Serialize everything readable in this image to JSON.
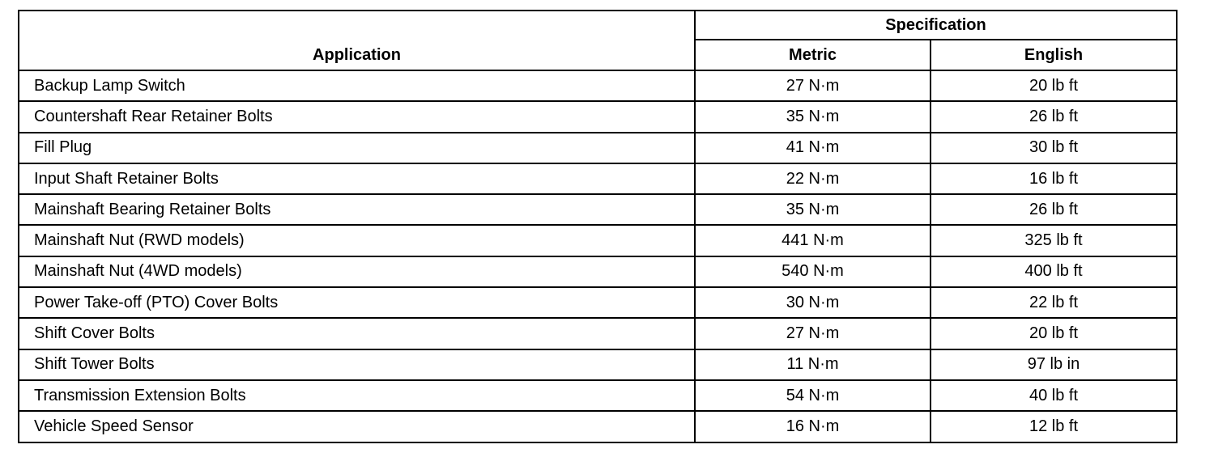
{
  "headers": {
    "application": "Application",
    "specification": "Specification",
    "metric": "Metric",
    "english": "English"
  },
  "rows": [
    {
      "application": "Backup Lamp Switch",
      "metric": "27 N·m",
      "english": "20 lb ft"
    },
    {
      "application": "Countershaft Rear Retainer Bolts",
      "metric": "35 N·m",
      "english": "26 lb ft"
    },
    {
      "application": "Fill Plug",
      "metric": "41 N·m",
      "english": "30 lb ft"
    },
    {
      "application": "Input Shaft Retainer Bolts",
      "metric": "22 N·m",
      "english": "16 lb ft"
    },
    {
      "application": "Mainshaft Bearing Retainer Bolts",
      "metric": "35 N·m",
      "english": "26 lb ft"
    },
    {
      "application": "Mainshaft Nut (RWD models)",
      "metric": "441 N·m",
      "english": "325 lb ft"
    },
    {
      "application": "Mainshaft Nut (4WD models)",
      "metric": "540 N·m",
      "english": "400 lb ft"
    },
    {
      "application": "Power Take-off (PTO) Cover Bolts",
      "metric": "30 N·m",
      "english": "22 lb ft"
    },
    {
      "application": "Shift Cover Bolts",
      "metric": "27 N·m",
      "english": "20 lb ft"
    },
    {
      "application": "Shift Tower Bolts",
      "metric": "11 N·m",
      "english": "97 lb in"
    },
    {
      "application": "Transmission Extension Bolts",
      "metric": "54 N·m",
      "english": "40 lb ft"
    },
    {
      "application": "Vehicle Speed Sensor",
      "metric": "16 N·m",
      "english": "12 lb ft"
    }
  ]
}
